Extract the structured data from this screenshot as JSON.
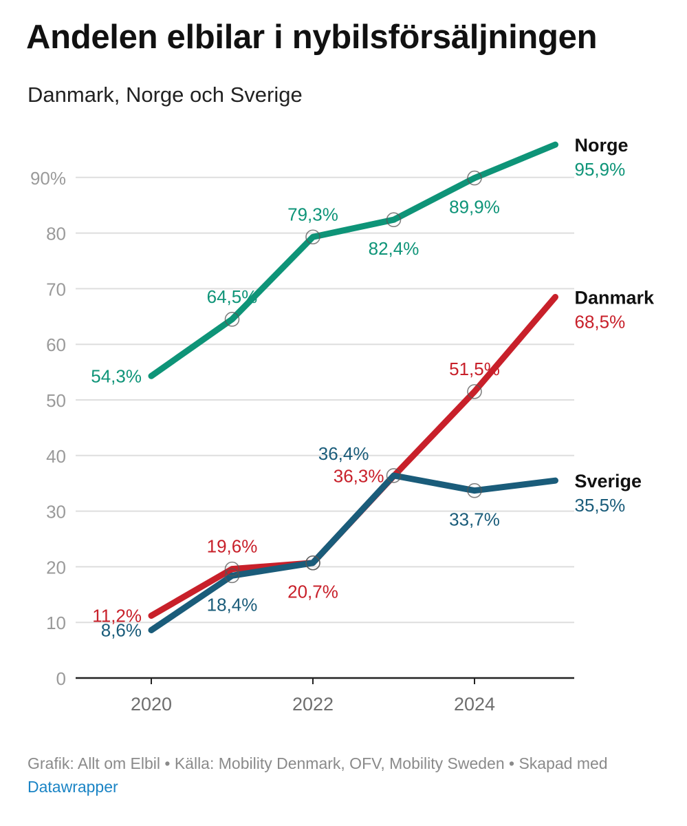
{
  "header": {
    "title": "Andelen elbilar i nybilsförsäljningen",
    "subtitle": "Danmark, Norge och Sverige"
  },
  "footer": {
    "credit": "Grafik: Allt om Elbil • Källa: Mobility Denmark, OFV, Mobility Sweden • Skapad med ",
    "tool_link": "Datawrapper"
  },
  "colors": {
    "norge": "#0e9478",
    "danmark": "#c8202a",
    "sverige": "#1a5c7a",
    "grid": "#dedede",
    "axis": "#222222",
    "tick": "#9a9a9a",
    "footer_link": "#1a84c5"
  },
  "chart_data": {
    "type": "line",
    "x": [
      2020,
      2021,
      2022,
      2023,
      2024,
      2025
    ],
    "x_tick_labels": [
      "2020",
      "2022",
      "2024"
    ],
    "x_tick_values": [
      2020,
      2022,
      2024
    ],
    "ylim": [
      0,
      100
    ],
    "y_tick_values": [
      0,
      10,
      20,
      30,
      40,
      50,
      60,
      70,
      80,
      90
    ],
    "y_tick_labels": [
      "0",
      "10",
      "20",
      "30",
      "40",
      "50",
      "60",
      "70",
      "80",
      "90%"
    ],
    "grid": true,
    "legend_placement": "direct labels at line ends",
    "series": [
      {
        "name": "Norge",
        "color_key": "norge",
        "values": [
          54.3,
          64.5,
          79.3,
          82.4,
          89.9,
          95.9
        ],
        "labels": [
          "54,3%",
          "64,5%",
          "79,3%",
          "82,4%",
          "89,9%",
          "95,9%"
        ],
        "label_positions": [
          "left",
          "above",
          "above",
          "below",
          "below",
          "end"
        ]
      },
      {
        "name": "Danmark",
        "color_key": "danmark",
        "values": [
          11.2,
          19.6,
          20.7,
          36.3,
          51.5,
          68.5
        ],
        "labels": [
          "11,2%",
          "19,6%",
          "20,7%",
          "36,3%",
          "51,5%",
          "68,5%"
        ],
        "label_positions": [
          "left",
          "above",
          "below",
          "left",
          "above",
          "end"
        ]
      },
      {
        "name": "Sverige",
        "color_key": "sverige",
        "values": [
          8.6,
          18.4,
          20.7,
          36.4,
          33.7,
          35.5
        ],
        "labels": [
          "8,6%",
          "18,4%",
          "",
          "36,4%",
          "33,7%",
          "35,5%"
        ],
        "label_positions": [
          "left",
          "below",
          "none",
          "above-left",
          "below",
          "end"
        ]
      }
    ]
  }
}
